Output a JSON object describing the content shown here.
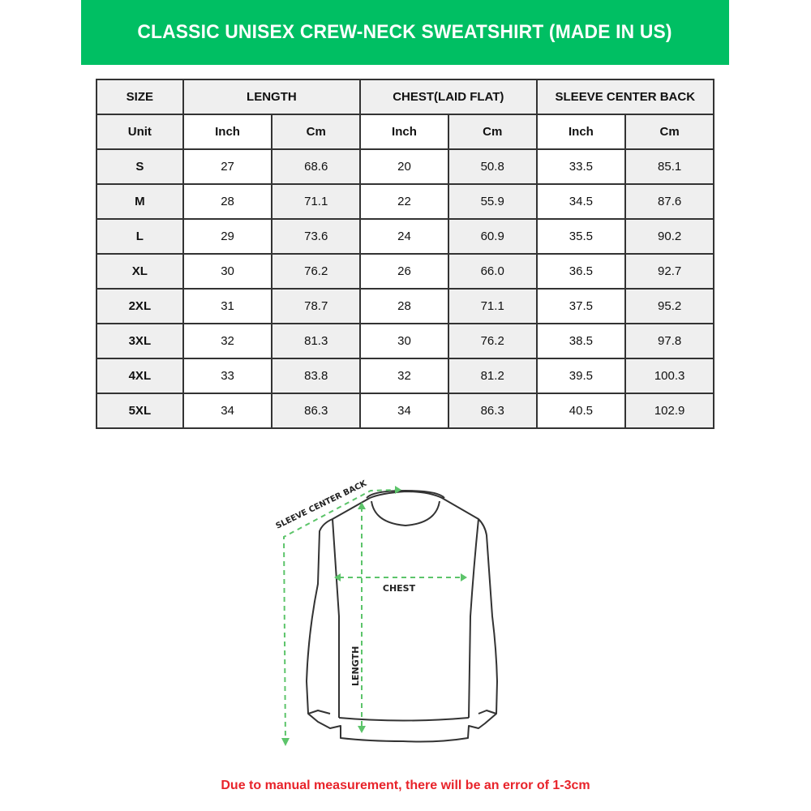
{
  "title": "CLASSIC UNISEX CREW-NECK SWEATSHIRT (MADE IN US)",
  "colors": {
    "banner": "#00bf63",
    "arrow": "#5cc46a",
    "note": "#e8232a"
  },
  "table": {
    "headers": [
      "SIZE",
      "LENGTH",
      "CHEST(LAID FLAT)",
      "SLEEVE CENTER BACK"
    ],
    "units": [
      "Unit",
      "Inch",
      "Cm",
      "Inch",
      "Cm",
      "Inch",
      "Cm"
    ],
    "rows": [
      [
        "S",
        "27",
        "68.6",
        "20",
        "50.8",
        "33.5",
        "85.1"
      ],
      [
        "M",
        "28",
        "71.1",
        "22",
        "55.9",
        "34.5",
        "87.6"
      ],
      [
        "L",
        "29",
        "73.6",
        "24",
        "60.9",
        "35.5",
        "90.2"
      ],
      [
        "XL",
        "30",
        "76.2",
        "26",
        "66.0",
        "36.5",
        "92.7"
      ],
      [
        "2XL",
        "31",
        "78.7",
        "28",
        "71.1",
        "37.5",
        "95.2"
      ],
      [
        "3XL",
        "32",
        "81.3",
        "30",
        "76.2",
        "38.5",
        "97.8"
      ],
      [
        "4XL",
        "33",
        "83.8",
        "32",
        "81.2",
        "39.5",
        "100.3"
      ],
      [
        "5XL",
        "34",
        "86.3",
        "34",
        "86.3",
        "40.5",
        "102.9"
      ]
    ]
  },
  "diagram": {
    "sleeve_label": "SLEEVE CENTER BACK",
    "chest_label": "CHEST",
    "length_label": "LENGTH"
  },
  "note": "Due to manual measurement, there will be an error of 1-3cm"
}
